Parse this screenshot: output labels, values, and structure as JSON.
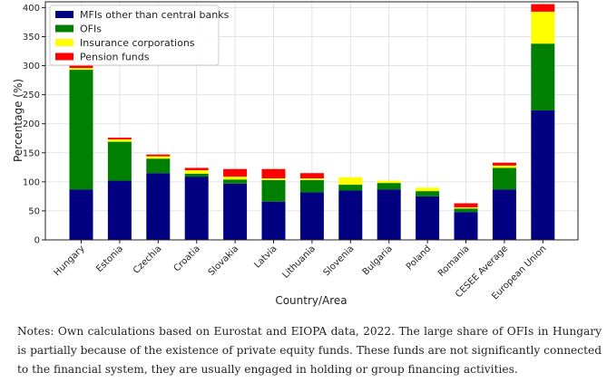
{
  "chart_data": {
    "type": "bar",
    "stacked": true,
    "categories": [
      "Hungary",
      "Estonia",
      "Czechia",
      "Croatia",
      "Slovakia",
      "Latvia",
      "Lithuania",
      "Slovenia",
      "Bulgaria",
      "Poland",
      "Romania",
      "CESEE Average",
      "European Union"
    ],
    "series": [
      {
        "name": "MFIs other than central banks",
        "color": "#000080",
        "values": [
          87,
          102,
          115,
          109,
          97,
          66,
          82,
          85,
          87,
          75,
          48,
          87,
          223
        ]
      },
      {
        "name": "OFIs",
        "color": "#008000",
        "values": [
          206,
          67,
          25,
          5,
          7,
          37,
          21,
          10,
          11,
          9,
          6,
          37,
          115
        ]
      },
      {
        "name": "Insurance corporations",
        "color": "#ffff00",
        "values": [
          3,
          4,
          4,
          6,
          5,
          3,
          3,
          13,
          4,
          6,
          2,
          4,
          55
        ]
      },
      {
        "name": "Pension funds",
        "color": "#ff0000",
        "values": [
          4,
          3,
          3,
          4,
          13,
          16,
          9,
          0,
          0,
          0,
          7,
          5,
          13
        ]
      }
    ],
    "xlabel": "Country/Area",
    "ylabel": "Percentage (%)",
    "ylim": [
      0,
      410
    ],
    "yticks": [
      0,
      50,
      100,
      150,
      200,
      250,
      300,
      350,
      400
    ],
    "grid": true,
    "legend": "top-left"
  },
  "notes": "Notes: Own calculations based on Eurostat and EIOPA data, 2022. The large share of OFIs in Hungary is partially because of the existence of private equity funds. These funds are not significantly connected to the financial system, they are usually engaged in holding or group financing activities."
}
